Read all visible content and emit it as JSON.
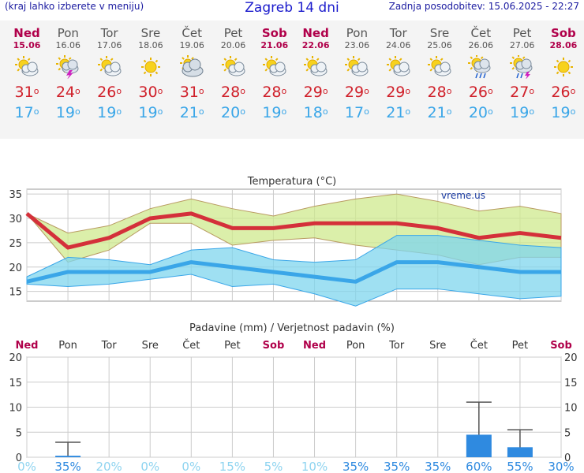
{
  "header": {
    "left_link": "(kraj lahko izberete v meniju)",
    "title": "Zagreb 14 dni",
    "updated": "Zadnja posodobitev: 15.06.2025 - 22:27"
  },
  "days": [
    {
      "name": "Ned",
      "date": "15.06",
      "weekend": true,
      "icon": "sun-cloud-icon",
      "max": "31",
      "min": "17"
    },
    {
      "name": "Pon",
      "date": "16.06",
      "weekend": false,
      "icon": "storm-icon",
      "max": "24",
      "min": "19"
    },
    {
      "name": "Tor",
      "date": "17.06",
      "weekend": false,
      "icon": "sun-cloud-icon",
      "max": "26",
      "min": "19"
    },
    {
      "name": "Sre",
      "date": "18.06",
      "weekend": false,
      "icon": "sun-icon",
      "max": "30",
      "min": "19"
    },
    {
      "name": "Čet",
      "date": "19.06",
      "weekend": false,
      "icon": "cloudy-icon",
      "max": "31",
      "min": "21"
    },
    {
      "name": "Pet",
      "date": "20.06",
      "weekend": false,
      "icon": "sun-cloud-icon",
      "max": "28",
      "min": "20"
    },
    {
      "name": "Sob",
      "date": "21.06",
      "weekend": true,
      "icon": "sun-cloud-icon",
      "max": "28",
      "min": "19"
    },
    {
      "name": "Ned",
      "date": "22.06",
      "weekend": true,
      "icon": "sun-cloud-icon",
      "max": "29",
      "min": "18"
    },
    {
      "name": "Pon",
      "date": "23.06",
      "weekend": false,
      "icon": "sun-cloud-icon",
      "max": "29",
      "min": "17"
    },
    {
      "name": "Tor",
      "date": "24.06",
      "weekend": false,
      "icon": "sun-cloud-icon",
      "max": "29",
      "min": "21"
    },
    {
      "name": "Sre",
      "date": "25.06",
      "weekend": false,
      "icon": "sun-cloud-icon",
      "max": "28",
      "min": "21"
    },
    {
      "name": "Čet",
      "date": "26.06",
      "weekend": false,
      "icon": "rain-icon",
      "max": "26",
      "min": "20"
    },
    {
      "name": "Pet",
      "date": "27.06",
      "weekend": false,
      "icon": "storm-rain-icon",
      "max": "27",
      "min": "19"
    },
    {
      "name": "Sob",
      "date": "28.06",
      "weekend": true,
      "icon": "sun-icon",
      "max": "26",
      "min": "19"
    }
  ],
  "degree_symbol": "o",
  "chart_data": [
    {
      "type": "line",
      "title": "Temperatura (°C)",
      "watermark": "vreme.us",
      "ylim": [
        13,
        36
      ],
      "yticks": [
        15,
        20,
        25,
        30,
        35
      ],
      "x": [
        "15.06",
        "16.06",
        "17.06",
        "18.06",
        "19.06",
        "20.06",
        "21.06",
        "22.06",
        "23.06",
        "24.06",
        "25.06",
        "26.06",
        "27.06",
        "28.06"
      ],
      "series": [
        {
          "role": "max",
          "color": "#d4303a",
          "values": [
            31,
            24,
            26,
            30,
            31,
            28,
            28,
            29,
            29,
            29,
            28,
            26,
            27,
            26
          ]
        },
        {
          "role": "max-upper",
          "color": "#c8e88a",
          "values": [
            31,
            27,
            28.5,
            32,
            34,
            32,
            30.5,
            32.5,
            34,
            35,
            33.5,
            31.5,
            32.5,
            31
          ]
        },
        {
          "role": "max-lower",
          "color": "#c8e88a",
          "values": [
            31,
            21,
            23.5,
            29,
            29,
            24.5,
            25.5,
            26,
            24.5,
            23.5,
            22.5,
            20.5,
            22,
            22
          ]
        },
        {
          "role": "min",
          "color": "#3aa6e8",
          "values": [
            17,
            19,
            19,
            19,
            21,
            20,
            19,
            18,
            17,
            21,
            21,
            20,
            19,
            19
          ]
        },
        {
          "role": "min-upper",
          "color": "#8fdcf0",
          "values": [
            18,
            22,
            21.5,
            20.5,
            23.5,
            24,
            21.5,
            21,
            21.5,
            26.5,
            26.5,
            25.5,
            24.5,
            24
          ]
        },
        {
          "role": "min-lower",
          "color": "#8fdcf0",
          "values": [
            16.5,
            16,
            16.5,
            17.5,
            18.5,
            16,
            16.5,
            14.5,
            12,
            15.5,
            15.5,
            14.5,
            13.5,
            14
          ]
        }
      ]
    },
    {
      "type": "bar",
      "title": "Padavine (mm) / Verjetnost padavin (%)",
      "ylim": [
        0,
        20
      ],
      "yticks": [
        0,
        5,
        10,
        15,
        20
      ],
      "day_names": [
        "Ned",
        "Pon",
        "Tor",
        "Sre",
        "Čet",
        "Pet",
        "Sob",
        "Ned",
        "Pon",
        "Tor",
        "Sre",
        "Čet",
        "Pet",
        "Sob"
      ],
      "weekend": [
        true,
        false,
        false,
        false,
        false,
        false,
        true,
        true,
        false,
        false,
        false,
        false,
        false,
        true
      ],
      "values": [
        0,
        0.3,
        0,
        0,
        0,
        0,
        0,
        0,
        0,
        0,
        0,
        4.5,
        2,
        0
      ],
      "error_high": [
        0,
        3,
        0,
        0,
        0,
        0,
        0,
        0,
        0,
        0,
        0,
        11,
        5.5,
        0
      ],
      "probability": [
        "0%",
        "35%",
        "20%",
        "0%",
        "0%",
        "15%",
        "5%",
        "10%",
        "35%",
        "35%",
        "35%",
        "60%",
        "55%",
        "30%"
      ],
      "bar_color": "#2f8ae0"
    }
  ]
}
